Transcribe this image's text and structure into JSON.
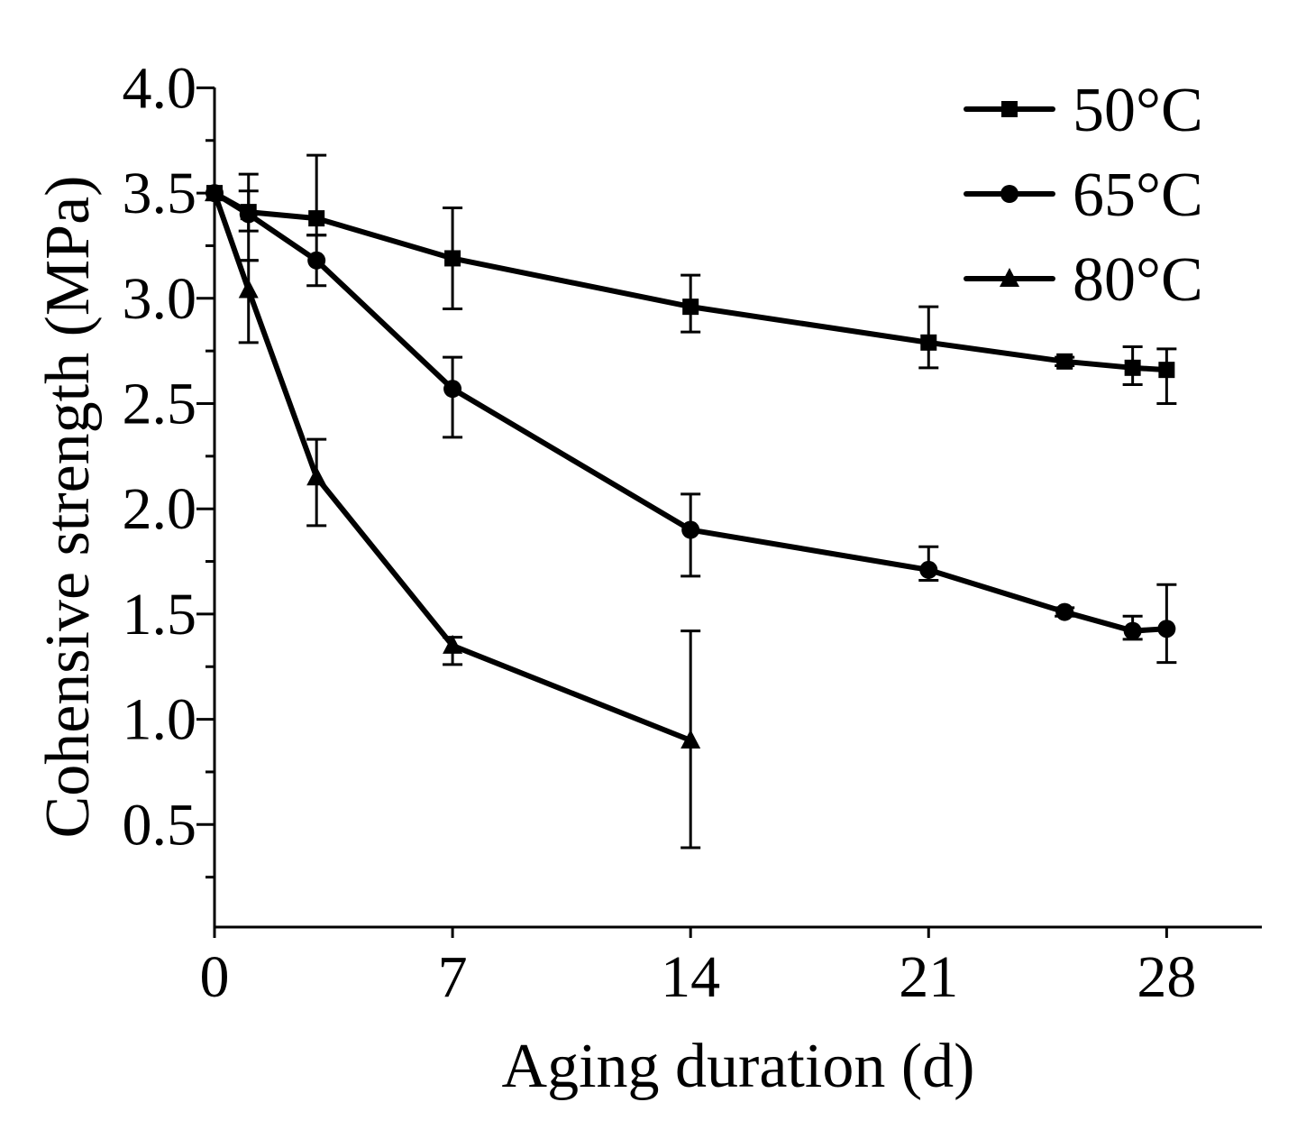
{
  "chart_data": {
    "type": "line",
    "title": "",
    "xlabel": "Aging duration (d)",
    "ylabel": "Cohensive strength (MPa)",
    "xlim": [
      0,
      30.8
    ],
    "ylim": [
      0,
      4.0
    ],
    "xticks": [
      0,
      7,
      14,
      21,
      28
    ],
    "xtick_labels": [
      "0",
      "7",
      "14",
      "21",
      "28"
    ],
    "yticks": [
      0.5,
      1.0,
      1.5,
      2.0,
      2.5,
      3.0,
      3.5,
      4.0
    ],
    "ytick_labels": [
      "0.5",
      "1.0",
      "1.5",
      "2.0",
      "2.5",
      "3.0",
      "3.5",
      "4.0"
    ],
    "grid": false,
    "legend_position": "top-right",
    "color": "#000000",
    "series": [
      {
        "name": "50°C",
        "marker": "square",
        "x": [
          0,
          1,
          3,
          7,
          14,
          21,
          25,
          27,
          28
        ],
        "y": [
          3.5,
          3.41,
          3.38,
          3.19,
          2.96,
          2.79,
          2.7,
          2.67,
          2.66
        ],
        "err_low": [
          null,
          3.32,
          3.3,
          2.95,
          2.84,
          2.67,
          2.68,
          2.59,
          2.5
        ],
        "err_high": [
          null,
          3.59,
          3.68,
          3.43,
          3.11,
          2.96,
          2.72,
          2.77,
          2.76
        ]
      },
      {
        "name": "65°C",
        "marker": "circle",
        "x": [
          0,
          1,
          3,
          7,
          14,
          21,
          25,
          27,
          28
        ],
        "y": [
          3.5,
          3.4,
          3.18,
          2.57,
          1.9,
          1.71,
          1.51,
          1.42,
          1.43
        ],
        "err_low": [
          null,
          3.18,
          3.06,
          2.34,
          1.68,
          1.66,
          1.49,
          1.38,
          1.27
        ],
        "err_high": [
          null,
          3.51,
          3.3,
          2.72,
          2.07,
          1.82,
          1.53,
          1.49,
          1.64
        ]
      },
      {
        "name": "80°C",
        "marker": "triangle",
        "x": [
          0,
          1,
          3,
          7,
          14
        ],
        "y": [
          3.5,
          3.04,
          2.15,
          1.35,
          0.9
        ],
        "err_low": [
          null,
          2.79,
          1.92,
          1.26,
          0.39
        ],
        "err_high": [
          null,
          3.18,
          2.33,
          1.39,
          1.42
        ]
      }
    ]
  }
}
